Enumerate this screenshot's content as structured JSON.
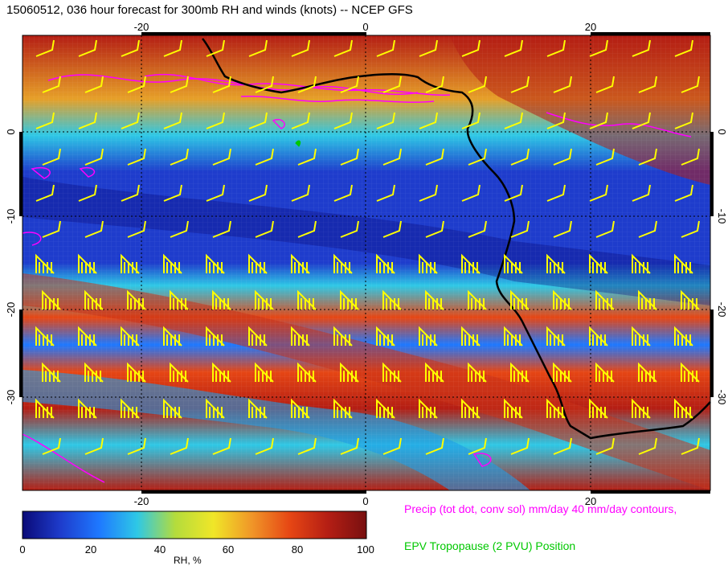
{
  "title": "15060512, 036 hour forecast for 300mb RH and winds (knots) -- NCEP GFS",
  "map": {
    "lon_ticks": [
      "-20",
      "0",
      "20"
    ],
    "lat_ticks": [
      "0",
      "-10",
      "-20",
      "-30"
    ]
  },
  "colorbar": {
    "label": "RH, %",
    "ticks": [
      "0",
      "20",
      "40",
      "60",
      "80",
      "100"
    ],
    "colors": [
      "#0a0a78",
      "#1e3ccc",
      "#1e78ff",
      "#2ec8e6",
      "#b4dc3c",
      "#f0e628",
      "#f09628",
      "#e64614",
      "#b41e14",
      "#781010"
    ]
  },
  "legend": {
    "precip": "Precip (tot dot, conv sol) mm/day 40 mm/day contours,",
    "epv": "EPV Tropopause (2 PVU) Position"
  },
  "colors": {
    "barb": "#ffff00",
    "precip_contour": "#ff00ff",
    "coastline": "#000000",
    "epv": "#00c800"
  }
}
